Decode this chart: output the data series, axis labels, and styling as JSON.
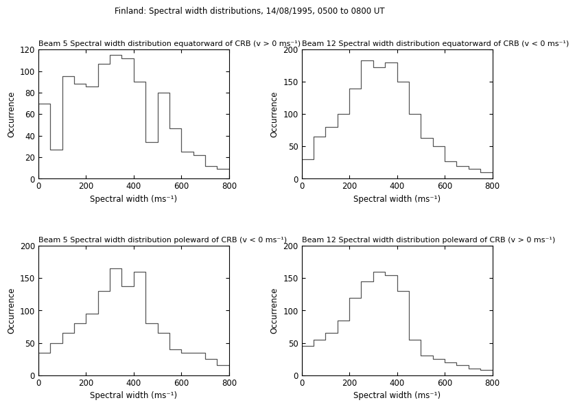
{
  "suptitle": "Finland: Spectral width distributions, 14/08/1995, 0500 to 0800 UT",
  "panels": [
    {
      "title": "Beam 5 Spectral width distribution equatorward of CRB (v > 0 ms⁻¹)",
      "xlabel": "Spectral width (ms⁻¹)",
      "ylabel": "Occurrence",
      "ylim": [
        0,
        120
      ],
      "xlim": [
        0,
        800
      ],
      "yticks": [
        0,
        20,
        40,
        60,
        80,
        100,
        120
      ],
      "xticks": [
        0,
        200,
        400,
        600,
        800
      ],
      "bin_edges": [
        0,
        50,
        100,
        150,
        200,
        250,
        300,
        350,
        400,
        450,
        500,
        550,
        600,
        650,
        700,
        750,
        800
      ],
      "values": [
        70,
        27,
        95,
        88,
        86,
        107,
        115,
        112,
        90,
        34,
        80,
        47,
        25,
        22,
        12,
        9
      ]
    },
    {
      "title": "Beam 12 Spectral width distribution equatorward of CRB (v < 0 ms⁻¹)",
      "xlabel": "Spectral width (ms⁻¹)",
      "ylabel": "Occurrence",
      "ylim": [
        0,
        200
      ],
      "xlim": [
        0,
        800
      ],
      "yticks": [
        0,
        50,
        100,
        150,
        200
      ],
      "xticks": [
        0,
        200,
        400,
        600,
        800
      ],
      "bin_edges": [
        0,
        50,
        100,
        150,
        200,
        250,
        300,
        350,
        400,
        450,
        500,
        550,
        600,
        650,
        700,
        750,
        800
      ],
      "values": [
        30,
        65,
        80,
        100,
        140,
        183,
        173,
        180,
        150,
        100,
        63,
        50,
        27,
        20,
        15,
        10
      ]
    },
    {
      "title": "Beam 5 Spectral width distribution poleward of CRB (v < 0 ms⁻¹)",
      "xlabel": "Spectral width (ms⁻¹)",
      "ylabel": "Occurrence",
      "ylim": [
        0,
        200
      ],
      "xlim": [
        0,
        800
      ],
      "yticks": [
        0,
        50,
        100,
        150,
        200
      ],
      "xticks": [
        0,
        200,
        400,
        600,
        800
      ],
      "bin_edges": [
        0,
        50,
        100,
        150,
        200,
        250,
        300,
        350,
        400,
        450,
        500,
        550,
        600,
        650,
        700,
        750,
        800
      ],
      "values": [
        35,
        50,
        65,
        80,
        95,
        130,
        165,
        138,
        160,
        80,
        65,
        40,
        35,
        35,
        25,
        15
      ]
    },
    {
      "title": "Beam 12 Spectral width distribution poleward of CRB (v > 0 ms⁻¹)",
      "xlabel": "Spectral width (ms⁻¹)",
      "ylabel": "Occurrence",
      "ylim": [
        0,
        200
      ],
      "xlim": [
        0,
        800
      ],
      "yticks": [
        0,
        50,
        100,
        150,
        200
      ],
      "xticks": [
        0,
        200,
        400,
        600,
        800
      ],
      "bin_edges": [
        0,
        50,
        100,
        150,
        200,
        250,
        300,
        350,
        400,
        450,
        500,
        550,
        600,
        650,
        700,
        750,
        800
      ],
      "values": [
        45,
        55,
        65,
        85,
        120,
        145,
        160,
        155,
        130,
        55,
        30,
        25,
        20,
        15,
        10,
        8
      ]
    }
  ]
}
